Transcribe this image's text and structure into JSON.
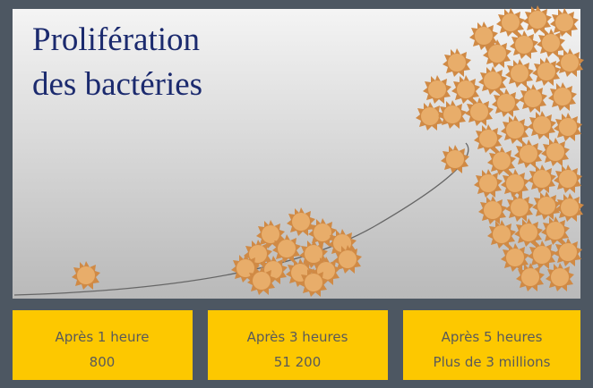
{
  "title": {
    "line1": "Prolifération",
    "line2": "des bactéries"
  },
  "stages": [
    {
      "label": "Après 1 heure",
      "count": "800"
    },
    {
      "label": "Après 3 heures",
      "count": "51 200"
    },
    {
      "label": "Après 5 heures",
      "count": "Plus de 3 millions"
    }
  ]
}
